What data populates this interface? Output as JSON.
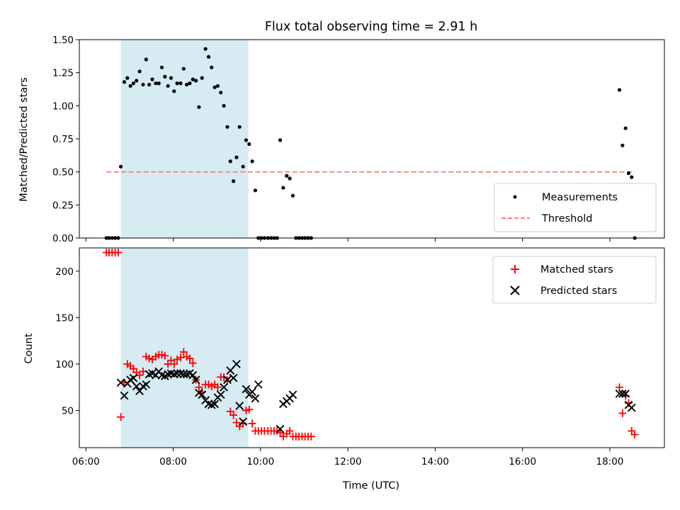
{
  "chart_data": {
    "title": "Flux total observing time = 2.91 h",
    "xlabel": "Time (UTC)",
    "x_unit": "hours (UTC)",
    "x_ticks": [
      {
        "value": 6,
        "label": "06:00"
      },
      {
        "value": 8,
        "label": "08:00"
      },
      {
        "value": 10,
        "label": "10:00"
      },
      {
        "value": 12,
        "label": "12:00"
      },
      {
        "value": 14,
        "label": "14:00"
      },
      {
        "value": 16,
        "label": "16:00"
      },
      {
        "value": 18,
        "label": "18:00"
      }
    ],
    "xlim": [
      5.85,
      19.25
    ],
    "highlight_span": {
      "x": [
        6.8,
        9.72
      ],
      "color": "#add8e6"
    },
    "panels": [
      {
        "type": "scatter",
        "ylabel": "Matched/Predicted stars",
        "ylim": [
          0,
          1.5
        ],
        "y_ticks": [
          {
            "value": 0,
            "label": "0.00"
          },
          {
            "value": 0.25,
            "label": "0.25"
          },
          {
            "value": 0.5,
            "label": "0.50"
          },
          {
            "value": 0.75,
            "label": "0.75"
          },
          {
            "value": 1.0,
            "label": "1.00"
          },
          {
            "value": 1.25,
            "label": "1.25"
          },
          {
            "value": 1.5,
            "label": "1.50"
          }
        ],
        "legend_position": "lower-right",
        "series": [
          {
            "name": "Measurements",
            "marker": "dot",
            "color": "#000000",
            "points": [
              [
                6.47,
                0
              ],
              [
                6.53,
                0
              ],
              [
                6.6,
                0
              ],
              [
                6.67,
                0
              ],
              [
                6.74,
                0
              ],
              [
                6.8,
                0.54
              ],
              [
                6.88,
                1.18
              ],
              [
                6.95,
                1.21
              ],
              [
                7.02,
                1.15
              ],
              [
                7.09,
                1.17
              ],
              [
                7.16,
                1.19
              ],
              [
                7.23,
                1.26
              ],
              [
                7.31,
                1.16
              ],
              [
                7.38,
                1.35
              ],
              [
                7.45,
                1.16
              ],
              [
                7.52,
                1.2
              ],
              [
                7.6,
                1.17
              ],
              [
                7.67,
                1.17
              ],
              [
                7.74,
                1.29
              ],
              [
                7.81,
                1.22
              ],
              [
                7.88,
                1.15
              ],
              [
                7.95,
                1.21
              ],
              [
                8.02,
                1.11
              ],
              [
                8.09,
                1.17
              ],
              [
                8.17,
                1.17
              ],
              [
                8.24,
                1.28
              ],
              [
                8.31,
                1.16
              ],
              [
                8.38,
                1.17
              ],
              [
                8.45,
                1.2
              ],
              [
                8.52,
                1.19
              ],
              [
                8.59,
                0.99
              ],
              [
                8.66,
                1.21
              ],
              [
                8.74,
                1.43
              ],
              [
                8.81,
                1.37
              ],
              [
                8.88,
                1.29
              ],
              [
                8.95,
                1.14
              ],
              [
                9.02,
                1.15
              ],
              [
                9.09,
                1.1
              ],
              [
                9.16,
                1.0
              ],
              [
                9.24,
                0.84
              ],
              [
                9.31,
                0.58
              ],
              [
                9.38,
                0.43
              ],
              [
                9.45,
                0.61
              ],
              [
                9.52,
                0.84
              ],
              [
                9.6,
                0.54
              ],
              [
                9.67,
                0.74
              ],
              [
                9.74,
                0.71
              ],
              [
                9.81,
                0.58
              ],
              [
                9.88,
                0.36
              ],
              [
                9.95,
                0
              ],
              [
                10.02,
                0
              ],
              [
                10.09,
                0
              ],
              [
                10.17,
                0
              ],
              [
                10.24,
                0
              ],
              [
                10.31,
                0
              ],
              [
                10.38,
                0
              ],
              [
                10.45,
                0.74
              ],
              [
                10.52,
                0.38
              ],
              [
                10.6,
                0.47
              ],
              [
                10.67,
                0.45
              ],
              [
                10.74,
                0.32
              ],
              [
                10.81,
                0
              ],
              [
                10.88,
                0
              ],
              [
                10.95,
                0
              ],
              [
                11.02,
                0
              ],
              [
                11.09,
                0
              ],
              [
                11.16,
                0
              ],
              [
                18.22,
                1.12
              ],
              [
                18.29,
                0.7
              ],
              [
                18.36,
                0.83
              ],
              [
                18.43,
                0.49
              ],
              [
                18.5,
                0.46
              ],
              [
                18.57,
                0
              ]
            ]
          },
          {
            "name": "Threshold",
            "type": "line",
            "style": "dashed",
            "color": "#ff7f7f",
            "points": [
              [
                6.47,
                0.5
              ],
              [
                18.57,
                0.5
              ]
            ]
          }
        ]
      },
      {
        "type": "scatter",
        "ylabel": "Count",
        "ylim": [
          10,
          225
        ],
        "y_ticks": [
          {
            "value": 50,
            "label": "50"
          },
          {
            "value": 100,
            "label": "100"
          },
          {
            "value": 150,
            "label": "150"
          },
          {
            "value": 200,
            "label": "200"
          }
        ],
        "legend_position": "upper-right",
        "series": [
          {
            "name": "Matched stars",
            "marker": "plus",
            "color": "#ff0000",
            "points": [
              [
                6.47,
                220
              ],
              [
                6.53,
                220
              ],
              [
                6.6,
                220
              ],
              [
                6.67,
                220
              ],
              [
                6.74,
                220
              ],
              [
                6.8,
                43
              ],
              [
                6.88,
                80
              ],
              [
                6.95,
                100
              ],
              [
                7.02,
                98
              ],
              [
                7.09,
                95
              ],
              [
                7.16,
                91
              ],
              [
                7.23,
                88
              ],
              [
                7.31,
                92
              ],
              [
                7.38,
                108
              ],
              [
                7.45,
                106
              ],
              [
                7.52,
                105
              ],
              [
                7.6,
                108
              ],
              [
                7.67,
                110
              ],
              [
                7.74,
                110
              ],
              [
                7.81,
                109
              ],
              [
                7.88,
                100
              ],
              [
                7.95,
                104
              ],
              [
                8.02,
                100
              ],
              [
                8.09,
                105
              ],
              [
                8.17,
                107
              ],
              [
                8.24,
                113
              ],
              [
                8.31,
                108
              ],
              [
                8.38,
                106
              ],
              [
                8.45,
                101
              ],
              [
                8.52,
                83
              ],
              [
                8.59,
                75
              ],
              [
                8.66,
                70
              ],
              [
                8.74,
                78
              ],
              [
                8.81,
                78
              ],
              [
                8.88,
                76
              ],
              [
                8.95,
                78
              ],
              [
                9.02,
                75
              ],
              [
                9.09,
                86
              ],
              [
                9.16,
                86
              ],
              [
                9.24,
                82
              ],
              [
                9.31,
                49
              ],
              [
                9.38,
                45
              ],
              [
                9.45,
                37
              ],
              [
                9.52,
                33
              ],
              [
                9.6,
                36
              ],
              [
                9.67,
                50
              ],
              [
                9.74,
                51
              ],
              [
                9.81,
                36
              ],
              [
                9.88,
                28
              ],
              [
                9.95,
                28
              ],
              [
                10.02,
                28
              ],
              [
                10.09,
                28
              ],
              [
                10.17,
                28
              ],
              [
                10.24,
                28
              ],
              [
                10.31,
                28
              ],
              [
                10.38,
                28
              ],
              [
                10.45,
                26
              ],
              [
                10.52,
                22
              ],
              [
                10.6,
                25
              ],
              [
                10.67,
                28
              ],
              [
                10.74,
                22
              ],
              [
                10.81,
                22
              ],
              [
                10.88,
                22
              ],
              [
                10.95,
                22
              ],
              [
                11.02,
                22
              ],
              [
                11.09,
                22
              ],
              [
                11.16,
                22
              ],
              [
                18.22,
                75
              ],
              [
                18.29,
                47
              ],
              [
                18.36,
                66
              ],
              [
                18.43,
                58
              ],
              [
                18.5,
                28
              ],
              [
                18.57,
                24
              ]
            ]
          },
          {
            "name": "Predicted stars",
            "marker": "x",
            "color": "#000000",
            "points": [
              [
                6.8,
                80
              ],
              [
                6.88,
                66
              ],
              [
                6.95,
                79
              ],
              [
                7.02,
                83
              ],
              [
                7.09,
                85
              ],
              [
                7.16,
                76
              ],
              [
                7.23,
                71
              ],
              [
                7.31,
                76
              ],
              [
                7.38,
                78
              ],
              [
                7.45,
                89
              ],
              [
                7.52,
                90
              ],
              [
                7.6,
                88
              ],
              [
                7.67,
                92
              ],
              [
                7.74,
                88
              ],
              [
                7.81,
                87
              ],
              [
                7.88,
                89
              ],
              [
                7.95,
                90
              ],
              [
                8.02,
                89
              ],
              [
                8.09,
                90
              ],
              [
                8.17,
                90
              ],
              [
                8.24,
                89
              ],
              [
                8.31,
                89
              ],
              [
                8.38,
                90
              ],
              [
                8.45,
                88
              ],
              [
                8.52,
                83
              ],
              [
                8.59,
                69
              ],
              [
                8.66,
                67
              ],
              [
                8.74,
                61
              ],
              [
                8.81,
                57
              ],
              [
                8.88,
                56
              ],
              [
                8.95,
                57
              ],
              [
                9.02,
                64
              ],
              [
                9.09,
                67
              ],
              [
                9.16,
                75
              ],
              [
                9.24,
                83
              ],
              [
                9.31,
                93
              ],
              [
                9.38,
                85
              ],
              [
                9.45,
                100
              ],
              [
                9.52,
                55
              ],
              [
                9.6,
                38
              ],
              [
                9.67,
                73
              ],
              [
                9.74,
                67
              ],
              [
                9.81,
                70
              ],
              [
                9.88,
                63
              ],
              [
                9.95,
                78
              ],
              [
                10.45,
                30
              ],
              [
                10.52,
                57
              ],
              [
                10.6,
                60
              ],
              [
                10.67,
                63
              ],
              [
                10.74,
                67
              ],
              [
                18.22,
                68
              ],
              [
                18.29,
                68
              ],
              [
                18.36,
                68
              ],
              [
                18.43,
                56
              ],
              [
                18.5,
                53
              ]
            ]
          }
        ]
      }
    ]
  }
}
